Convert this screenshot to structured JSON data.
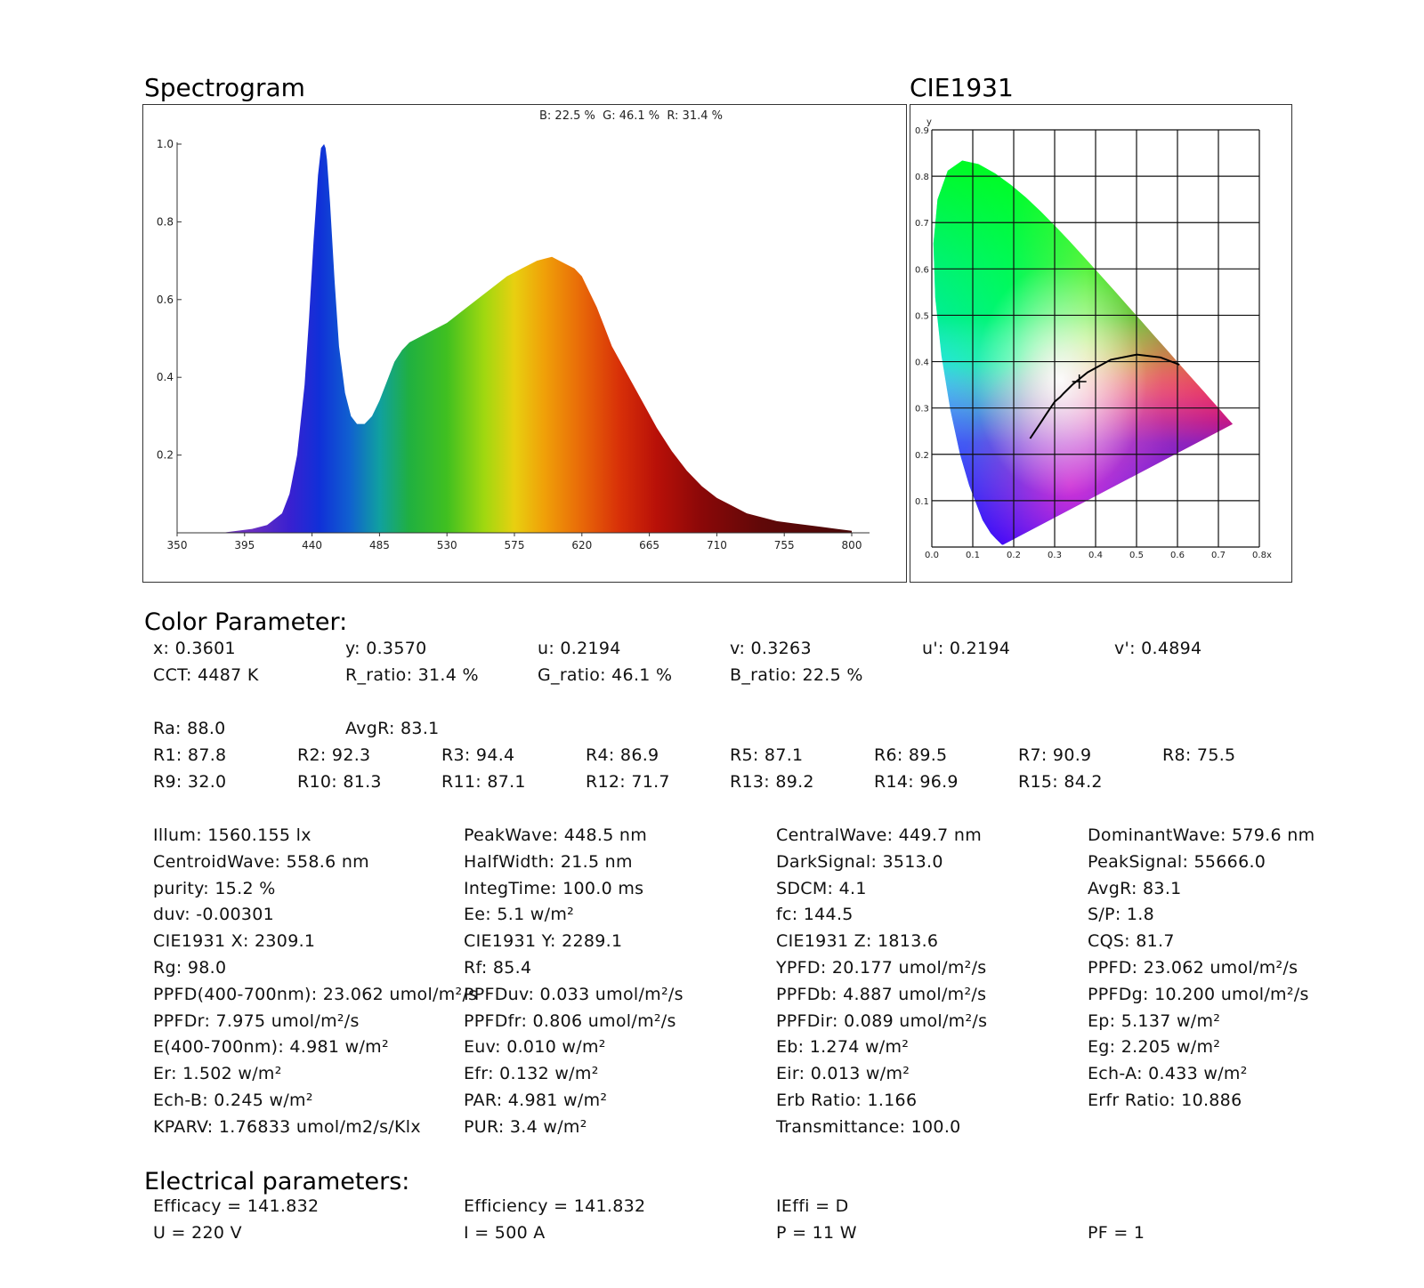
{
  "spectrogram": {
    "heading": "Spectrogram",
    "ratio_caption": "B: 22.5 %  G: 46.1 %  R: 31.4 %"
  },
  "cie": {
    "heading": "CIE1931",
    "y_axis_label": "y",
    "x_axis_label": "x"
  },
  "chart_data": [
    {
      "type": "area",
      "title": "",
      "xlabel": "",
      "ylabel": "",
      "xlim": [
        350,
        800
      ],
      "ylim": [
        0,
        1.0
      ],
      "x_ticks": [
        "350",
        "395",
        "440",
        "485",
        "530",
        "575",
        "620",
        "665",
        "710",
        "755",
        "800"
      ],
      "y_ticks": [
        "1.0",
        "0.8",
        "0.6",
        "0.4",
        "0.2"
      ],
      "grid": false,
      "fill": "visible-spectrum gradient",
      "series": [
        {
          "x": [
            350,
            380,
            400,
            410,
            420,
            425,
            430,
            435,
            438,
            441,
            444,
            446,
            448,
            449,
            450,
            452,
            455,
            458,
            462,
            466,
            470,
            475,
            480,
            485,
            490,
            495,
            500,
            505,
            510,
            515,
            520,
            525,
            530,
            540,
            550,
            560,
            570,
            575,
            580,
            585,
            590,
            595,
            600,
            605,
            610,
            615,
            620,
            625,
            630,
            635,
            640,
            650,
            660,
            670,
            680,
            690,
            700,
            710,
            720,
            730,
            740,
            750,
            760,
            770,
            780,
            790,
            800
          ],
          "y": [
            0.0,
            0.0,
            0.01,
            0.02,
            0.05,
            0.1,
            0.2,
            0.38,
            0.55,
            0.75,
            0.92,
            0.99,
            1.0,
            0.99,
            0.96,
            0.85,
            0.65,
            0.48,
            0.36,
            0.3,
            0.28,
            0.28,
            0.3,
            0.34,
            0.39,
            0.44,
            0.47,
            0.49,
            0.5,
            0.51,
            0.52,
            0.53,
            0.54,
            0.57,
            0.6,
            0.63,
            0.66,
            0.67,
            0.68,
            0.69,
            0.7,
            0.705,
            0.71,
            0.7,
            0.69,
            0.68,
            0.66,
            0.62,
            0.58,
            0.53,
            0.48,
            0.41,
            0.34,
            0.27,
            0.21,
            0.16,
            0.12,
            0.09,
            0.07,
            0.05,
            0.04,
            0.03,
            0.025,
            0.02,
            0.015,
            0.01,
            0.005
          ]
        }
      ]
    },
    {
      "type": "scatter",
      "title": "",
      "xlabel": "x",
      "ylabel": "y",
      "xlim": [
        0,
        0.8
      ],
      "ylim": [
        0,
        0.9
      ],
      "x_ticks": [
        "0.0",
        "0.1",
        "0.2",
        "0.3",
        "0.4",
        "0.5",
        "0.6",
        "0.7",
        "0.8"
      ],
      "y_ticks": [
        "0.9",
        "0.8",
        "0.7",
        "0.6",
        "0.5",
        "0.4",
        "0.3",
        "0.2",
        "0.1"
      ],
      "grid": true,
      "spectral_locus": {
        "x": [
          0.1741,
          0.1738,
          0.1733,
          0.1726,
          0.1714,
          0.1689,
          0.1644,
          0.1566,
          0.144,
          0.1241,
          0.0913,
          0.0687,
          0.0454,
          0.0235,
          0.0082,
          0.0039,
          0.0139,
          0.0389,
          0.0743,
          0.1142,
          0.1547,
          0.1929,
          0.2296,
          0.2658,
          0.3016,
          0.3373,
          0.3731,
          0.4087,
          0.4441,
          0.4788,
          0.5125,
          0.5448,
          0.5752,
          0.6029,
          0.627,
          0.6482,
          0.6658,
          0.6801,
          0.6915,
          0.7006,
          0.7079,
          0.714,
          0.719,
          0.723,
          0.726,
          0.7347
        ],
        "y": [
          0.005,
          0.0049,
          0.0048,
          0.0048,
          0.0051,
          0.0069,
          0.0109,
          0.0177,
          0.0297,
          0.0578,
          0.1327,
          0.2007,
          0.295,
          0.4127,
          0.5384,
          0.6548,
          0.7502,
          0.812,
          0.8338,
          0.8262,
          0.8059,
          0.7816,
          0.7543,
          0.7243,
          0.6923,
          0.6589,
          0.6245,
          0.5896,
          0.5547,
          0.5202,
          0.4866,
          0.4544,
          0.4242,
          0.3965,
          0.3725,
          0.3514,
          0.334,
          0.3197,
          0.3083,
          0.2993,
          0.292,
          0.2859,
          0.2809,
          0.277,
          0.274,
          0.2653
        ]
      },
      "planckian_locus": {
        "x": [
          0.2399,
          0.2647,
          0.2806,
          0.3003,
          0.3135,
          0.3221,
          0.3451,
          0.3805,
          0.4369,
          0.5008,
          0.5586,
          0.6048
        ],
        "y": [
          0.2341,
          0.267,
          0.2883,
          0.3137,
          0.3236,
          0.3318,
          0.3516,
          0.3768,
          0.4041,
          0.4152,
          0.4091,
          0.3933
        ]
      },
      "points": [
        {
          "x": 0.3601,
          "y": 0.357,
          "marker": "+"
        }
      ]
    }
  ],
  "color_params": {
    "heading": "Color Parameter:",
    "rows": [
      [
        "x: 0.3601",
        "y: 0.3570",
        "u: 0.2194",
        "v: 0.3263",
        "u': 0.2194",
        "v': 0.4894"
      ],
      [
        "CCT: 4487 K",
        "R_ratio: 31.4 %",
        "G_ratio: 46.1 %",
        "B_ratio: 22.5 %"
      ]
    ],
    "ra_row": [
      "Ra: 88.0",
      "AvgR: 83.1"
    ],
    "r_rows": [
      [
        "R1: 87.8",
        "R2: 92.3",
        "R3: 94.4",
        "R4: 86.9",
        "R5: 87.1",
        "R6: 89.5",
        "R7: 90.9",
        "R8: 75.5"
      ],
      [
        "R9: 32.0",
        "R10: 81.3",
        "R11: 87.1",
        "R12: 71.7",
        "R13: 89.2",
        "R14: 96.9",
        "R15: 84.2"
      ]
    ],
    "grid_rows": [
      [
        "Illum: 1560.155 lx",
        "PeakWave: 448.5 nm",
        "CentralWave: 449.7 nm",
        "DominantWave: 579.6 nm"
      ],
      [
        "CentroidWave: 558.6 nm",
        "HalfWidth: 21.5 nm",
        "DarkSignal: 3513.0",
        "PeakSignal: 55666.0"
      ],
      [
        "purity: 15.2 %",
        "IntegTime: 100.0 ms",
        "SDCM: 4.1",
        "AvgR: 83.1"
      ],
      [
        "duv: -0.00301",
        "Ee: 5.1 w/m²",
        "fc: 144.5",
        "S/P: 1.8"
      ],
      [
        "CIE1931 X: 2309.1",
        "CIE1931 Y: 2289.1",
        "CIE1931 Z: 1813.6",
        "CQS: 81.7"
      ],
      [
        "Rg: 98.0",
        "Rf: 85.4",
        "YPFD: 20.177 umol/m²/s",
        "PPFD: 23.062 umol/m²/s"
      ],
      [
        "PPFD(400-700nm): 23.062 umol/m²/s",
        "PPFDuv: 0.033 umol/m²/s",
        "PPFDb: 4.887 umol/m²/s",
        "PPFDg: 10.200 umol/m²/s"
      ],
      [
        "PPFDr: 7.975 umol/m²/s",
        "PPFDfr: 0.806 umol/m²/s",
        "PPFDir: 0.089 umol/m²/s",
        "Ep: 5.137 w/m²"
      ],
      [
        "E(400-700nm): 4.981 w/m²",
        "Euv: 0.010 w/m²",
        "Eb: 1.274 w/m²",
        "Eg: 2.205 w/m²"
      ],
      [
        "Er: 1.502 w/m²",
        "Efr: 0.132 w/m²",
        "Eir: 0.013 w/m²",
        "Ech-A: 0.433 w/m²"
      ],
      [
        "Ech-B: 0.245 w/m²",
        "PAR: 4.981 w/m²",
        "Erb Ratio: 1.166",
        "Erfr Ratio: 10.886"
      ],
      [
        "KPARV: 1.76833 umol/m2/s/Klx",
        "PUR: 3.4 w/m²",
        "Transmittance: 100.0",
        ""
      ]
    ]
  },
  "electrical": {
    "heading": "Electrical parameters:",
    "rows": [
      [
        "Efficacy = 141.832",
        "Efficiency = 141.832",
        "IEffi = D",
        ""
      ],
      [
        "U = 220 V",
        "I = 500 A",
        "P = 11 W",
        "PF = 1"
      ]
    ]
  }
}
